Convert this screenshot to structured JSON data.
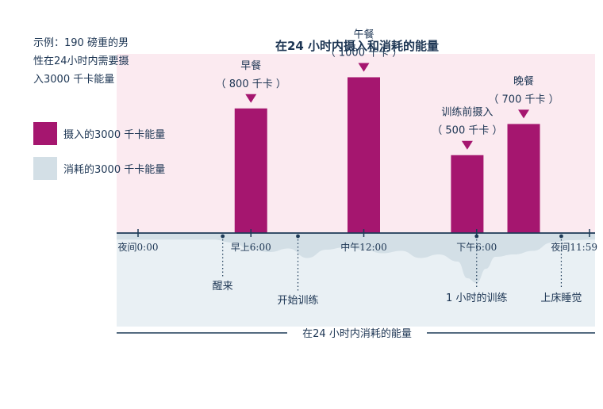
{
  "colors": {
    "intake": "#a5166f",
    "burn": "#d3dfe6",
    "pink_bg": "#fbeaf0",
    "blue_bg": "#e9f0f4",
    "axis": "#1d3a57",
    "text": "#1c3553"
  },
  "intro_lines": [
    "示例：190 磅重的男",
    "性在24小时内需要摄",
    "入3000 千卡能量"
  ],
  "legend": {
    "intake": "摄入的3000 千卡能量",
    "burn": "消耗的3000 千卡能量"
  },
  "bottom_label": "在24 小时内消耗的能量",
  "chart_data": {
    "type": "bar",
    "title": "在24 小时内摄入和消耗的能量",
    "x_unit": "hours",
    "xlim": [
      0,
      24
    ],
    "ylim": [
      0,
      1150
    ],
    "x_ticks": [
      {
        "hour": 0,
        "label": "夜间0:00"
      },
      {
        "hour": 6,
        "label": "早上6:00"
      },
      {
        "hour": 12,
        "label": "中午12:00"
      },
      {
        "hour": 18,
        "label": "下午6:00"
      },
      {
        "hour": 24,
        "label": "夜间11:59"
      }
    ],
    "meals": [
      {
        "hour": 6,
        "kcal": 800,
        "name": "早餐",
        "amount": "（ 800 千卡 ）"
      },
      {
        "hour": 12,
        "kcal": 1000,
        "name": "午餐",
        "amount": "（ 1000 千卡 ）"
      },
      {
        "hour": 17.5,
        "kcal": 500,
        "name": "训练前摄入",
        "amount": "（ 500 千卡 ）"
      },
      {
        "hour": 20.5,
        "kcal": 700,
        "name": "晚餐",
        "amount": "（ 700 千卡 ）"
      }
    ],
    "events": [
      {
        "hour": 4.5,
        "label": "醒来"
      },
      {
        "hour": 8.5,
        "label": "开始训练"
      },
      {
        "hour": 18,
        "label": "1 小时的训练"
      },
      {
        "hour": 22.5,
        "label": "上床睡觉"
      }
    ],
    "burn_series": {
      "name": "消耗的3000 千卡能量",
      "hours": [
        0,
        2,
        4,
        5,
        6,
        7,
        8,
        9,
        10,
        11,
        12,
        13,
        14,
        15,
        16,
        17,
        17.5,
        18,
        18.5,
        19,
        20,
        21,
        22,
        23,
        24
      ],
      "kcal_per_hour": [
        55,
        55,
        55,
        80,
        140,
        160,
        130,
        210,
        140,
        120,
        140,
        170,
        150,
        210,
        180,
        240,
        380,
        420,
        300,
        200,
        180,
        150,
        80,
        60,
        55
      ]
    }
  }
}
